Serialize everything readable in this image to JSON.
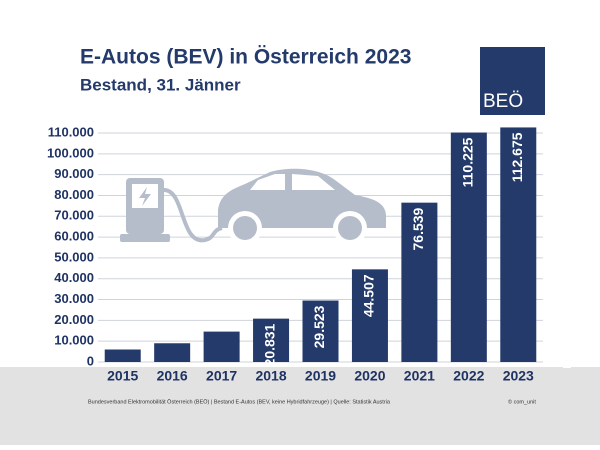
{
  "chart_data": {
    "type": "bar",
    "title": "E-Autos (BEV) in Österreich 2023",
    "subtitle": "Bestand, 31. Jänner",
    "logo": "BEÖ",
    "footnote": "Bundesverband Elektromobilität Österreich (BEÖ) | Bestand E-Autos (BEV, keine Hybridfahrzeuge) | Quelle: Statistik Austria",
    "credit": "© com_unit",
    "categories": [
      "2015",
      "2016",
      "2017",
      "2018",
      "2019",
      "2020",
      "2021",
      "2022",
      "2023"
    ],
    "values": [
      6000,
      9000,
      14600,
      20831,
      29523,
      44507,
      76539,
      110225,
      112675
    ],
    "value_labels": [
      null,
      null,
      null,
      "20.831",
      "29.523",
      "44.507",
      "76.539",
      "110.225",
      "112.675"
    ],
    "color": "#233a6b",
    "ylim": [
      0,
      115000
    ],
    "yticks": [
      0,
      {
        "value": 10000,
        "label": "10.000"
      },
      {
        "value": 20000,
        "label": "20.000"
      },
      {
        "value": 30000,
        "label": "30.000"
      },
      {
        "value": 40000,
        "label": "40.000"
      },
      {
        "value": 50000,
        "label": "50.000"
      },
      {
        "value": 60000,
        "label": "60.000"
      },
      {
        "value": 70000,
        "label": "70.000"
      },
      {
        "value": 80000,
        "label": "80.000"
      },
      {
        "value": 90000,
        "label": "90.000"
      },
      {
        "value": 100000,
        "label": "100.000"
      },
      {
        "value": 110000,
        "label": "110.000"
      }
    ],
    "grid": true
  }
}
